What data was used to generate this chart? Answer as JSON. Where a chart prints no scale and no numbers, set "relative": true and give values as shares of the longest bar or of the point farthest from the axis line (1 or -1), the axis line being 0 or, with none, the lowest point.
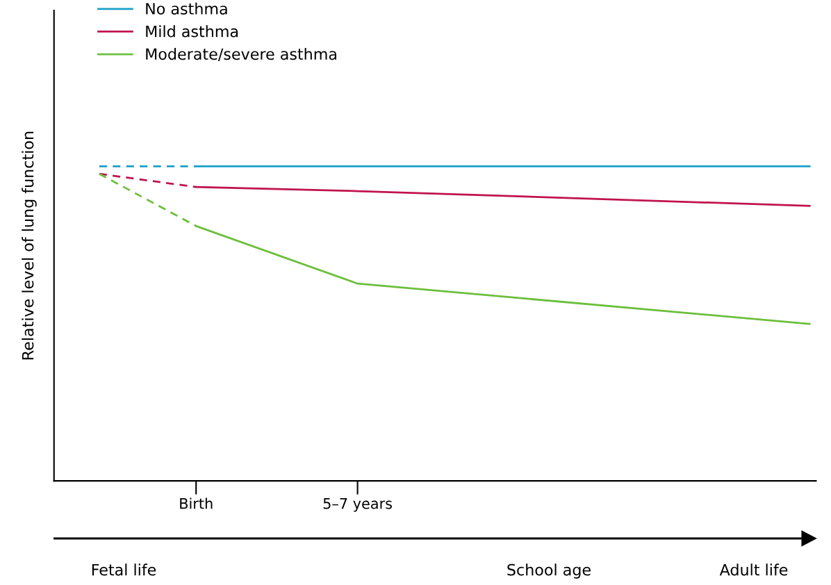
{
  "chart_data": {
    "type": "line",
    "relative": true,
    "ylabel": "Relative level of lung function",
    "categories": [
      null,
      null,
      null,
      "Birth",
      null,
      null,
      null,
      null,
      "5–7 years",
      null,
      null,
      null,
      null,
      null,
      null,
      null,
      null,
      null,
      null,
      null,
      null,
      null,
      null
    ],
    "tick_labels": "x",
    "grid": false,
    "legend": "top left",
    "marker": "none",
    "series": [
      {
        "name": "No asthma",
        "color": "#1aa0c8",
        "line_style": "solid",
        "values": [
          null,
          null,
          null,
          1,
          null,
          null,
          null,
          null,
          null,
          null,
          null,
          null,
          null,
          null,
          null,
          null,
          null,
          null,
          null,
          null,
          null,
          null,
          1
        ]
      },
      {
        "name": "Mild asthma",
        "color": "#c0144c",
        "line_style": "solid",
        "values": [
          null,
          null,
          null,
          0.934,
          null,
          null,
          null,
          null,
          0.921,
          null,
          null,
          null,
          null,
          null,
          null,
          null,
          null,
          null,
          null,
          null,
          null,
          null,
          0.874
        ]
      },
      {
        "name": "Moderate/severe asthma",
        "color": "#6cbf3c",
        "line_style": "solid",
        "values": [
          null,
          null,
          null,
          0.81,
          null,
          null,
          null,
          null,
          0.627,
          null,
          null,
          null,
          null,
          null,
          null,
          null,
          null,
          null,
          null,
          null,
          null,
          null,
          0.499
        ]
      },
      {
        "color": "#1aa0c8",
        "line_style": "dashed",
        "values": [
          1,
          null,
          null,
          1,
          null,
          null,
          null,
          null,
          null,
          null,
          null,
          null,
          null,
          null,
          null,
          null,
          null,
          null,
          null,
          null,
          null,
          null,
          null
        ]
      },
      {
        "color": "#c0144c",
        "line_style": "dashed",
        "values": [
          0.976,
          null,
          null,
          0.934,
          null,
          null,
          null,
          null,
          null,
          null,
          null,
          null,
          null,
          null,
          null,
          null,
          null,
          null,
          null,
          null,
          null,
          null,
          null
        ]
      },
      {
        "color": "#6cbf3c",
        "line_style": "dashed",
        "values": [
          0.976,
          null,
          null,
          0.81,
          null,
          null,
          null,
          null,
          null,
          null,
          null,
          null,
          null,
          null,
          null,
          null,
          null,
          null,
          null,
          null,
          null,
          null,
          null
        ]
      }
    ],
    "annotations": [
      "Fetal life",
      "School age",
      "Adult life"
    ]
  }
}
